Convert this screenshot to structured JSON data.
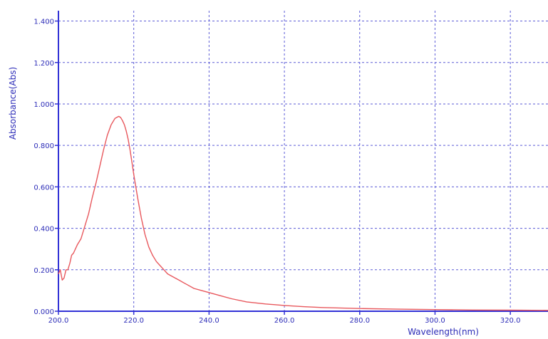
{
  "chart_data": {
    "type": "line",
    "xlabel": "Wavelength(nm)",
    "ylabel": "Absorbance(Abs)",
    "xlim": [
      200.0,
      330.0
    ],
    "ylim": [
      0.0,
      1.45
    ],
    "x_ticks": [
      "200.0",
      "220.0",
      "240.0",
      "260.0",
      "280.0",
      "300.0",
      "320.0"
    ],
    "y_ticks": [
      "0.000",
      "0.200",
      "0.400",
      "0.600",
      "0.800",
      "1.000",
      "1.200",
      "1.400"
    ],
    "grid": true,
    "series": [
      {
        "x": [
          200.0,
          200.5,
          201.0,
          201.5,
          202.0,
          202.5,
          203.0,
          203.5,
          204.0,
          205.0,
          206.0,
          207.0,
          208.0,
          209.0,
          210.0,
          211.0,
          212.0,
          213.0,
          214.0,
          215.0,
          216.0,
          216.5,
          217.0,
          217.5,
          218.0,
          218.5,
          219.0,
          219.5,
          220.0,
          221.0,
          222.0,
          223.0,
          224.0,
          225.0,
          226.0,
          227.0,
          228.0,
          229.0,
          230.0,
          232.0,
          234.0,
          236.0,
          238.0,
          240.0,
          243.0,
          246.0,
          250.0,
          255.0,
          260.0,
          265.0,
          270.0,
          280.0,
          290.0,
          300.0,
          310.0,
          320.0,
          330.0
        ],
        "y": [
          0.18,
          0.2,
          0.15,
          0.16,
          0.2,
          0.2,
          0.23,
          0.27,
          0.28,
          0.32,
          0.35,
          0.41,
          0.47,
          0.55,
          0.62,
          0.7,
          0.78,
          0.85,
          0.9,
          0.93,
          0.94,
          0.935,
          0.92,
          0.9,
          0.87,
          0.83,
          0.78,
          0.72,
          0.66,
          0.55,
          0.45,
          0.37,
          0.31,
          0.27,
          0.24,
          0.22,
          0.2,
          0.18,
          0.17,
          0.15,
          0.13,
          0.11,
          0.1,
          0.09,
          0.075,
          0.06,
          0.045,
          0.035,
          0.028,
          0.022,
          0.018,
          0.013,
          0.01,
          0.008,
          0.006,
          0.005,
          0.004
        ]
      }
    ]
  },
  "colors": {
    "axis": "#3232d6",
    "grid": "#5b5bd6",
    "line": "#e8585d",
    "text": "#2d2db8"
  }
}
